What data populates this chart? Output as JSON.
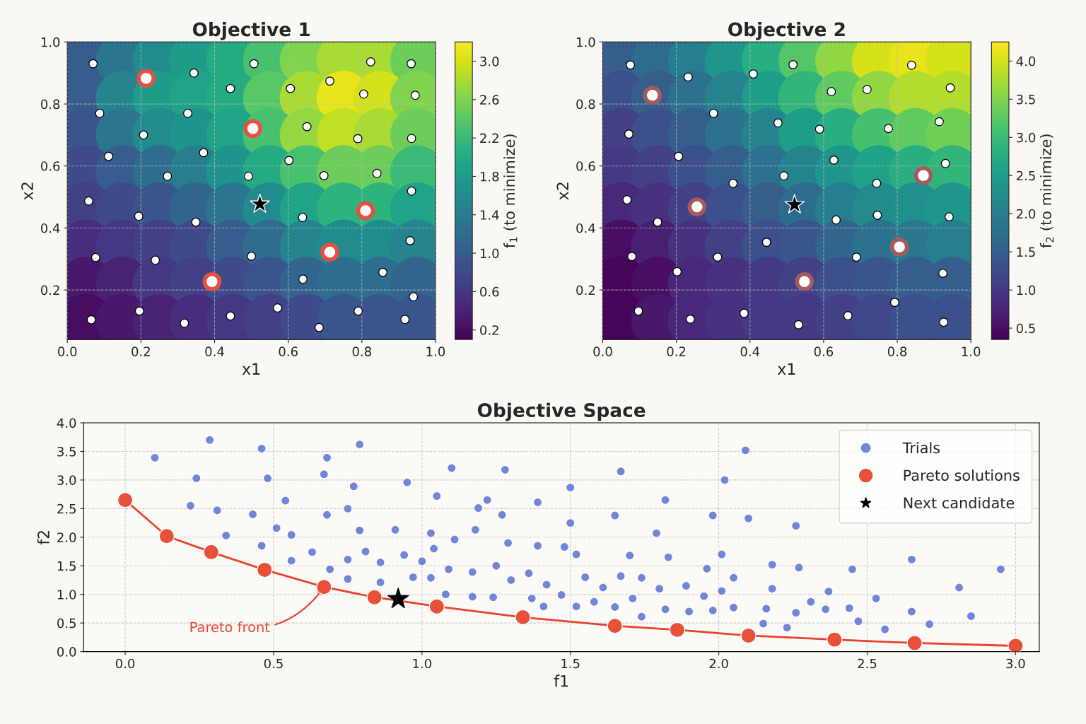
{
  "chart_data": [
    {
      "type": "scatter",
      "title": "Objective 1",
      "xlabel": "x1",
      "ylabel": "x2",
      "clabel": "f$_{1}$ (to minimize)",
      "clim": [
        0.1,
        3.2
      ],
      "cticks": [
        {
          "value": 0.2,
          "label": "0.2"
        },
        {
          "value": 0.6,
          "label": "0.6"
        },
        {
          "value": 1.0,
          "label": "1.0"
        },
        {
          "value": 1.4,
          "label": "1.4"
        },
        {
          "value": 1.8,
          "label": "1.8"
        },
        {
          "value": 2.2,
          "label": "2.2"
        },
        {
          "value": 2.6,
          "label": "2.6"
        },
        {
          "value": 3.0,
          "label": "3.0"
        }
      ],
      "xlim": [
        0,
        1
      ],
      "ylim": [
        0.04,
        1.0
      ],
      "xticks": [
        {
          "value": 0,
          "label": "0.0"
        },
        {
          "value": 0.2,
          "label": "0.2"
        },
        {
          "value": 0.4,
          "label": "0.4"
        },
        {
          "value": 0.6,
          "label": "0.6"
        },
        {
          "value": 0.8,
          "label": "0.8"
        },
        {
          "value": 1,
          "label": "1.0"
        }
      ],
      "yticks": [
        {
          "value": 0.2,
          "label": "0.2"
        },
        {
          "value": 0.4,
          "label": "0.4"
        },
        {
          "value": 0.6,
          "label": "0.6"
        },
        {
          "value": 0.8,
          "label": "0.8"
        },
        {
          "value": 1,
          "label": "1.0"
        }
      ],
      "grid": true,
      "series": [
        {
          "type": "scatter",
          "marker": "circle",
          "x": [
            0.05,
            0.15,
            0.25,
            0.35,
            0.45,
            0.55,
            0.65,
            0.75,
            0.85,
            0.95,
            0.05,
            0.15,
            0.25,
            0.35,
            0.45,
            0.55,
            0.65,
            0.75,
            0.85,
            0.95,
            0.05,
            0.15,
            0.25,
            0.35,
            0.45,
            0.55,
            0.65,
            0.75,
            0.85,
            0.95,
            0.05,
            0.15,
            0.25,
            0.35,
            0.45,
            0.55,
            0.65,
            0.75,
            0.85,
            0.95,
            0.05,
            0.15,
            0.25,
            0.35,
            0.45,
            0.55,
            0.65,
            0.75,
            0.85,
            0.95,
            0.05,
            0.15,
            0.25,
            0.35,
            0.45,
            0.55,
            0.65,
            0.75,
            0.85,
            0.95,
            0.05,
            0.15,
            0.25,
            0.35,
            0.45,
            0.55,
            0.65,
            0.75,
            0.85,
            0.95,
            0.05,
            0.15,
            0.25,
            0.35,
            0.45,
            0.55,
            0.65,
            0.75,
            0.85,
            0.95
          ],
          "values": [
            0.94,
            0.94,
            0.94,
            0.94,
            0.94,
            0.94,
            0.94,
            0.94,
            0.94,
            0.94,
            0.82,
            0.82,
            0.82,
            0.82,
            0.82,
            0.82,
            0.82,
            0.82,
            0.82,
            0.82,
            0.7,
            0.7,
            0.7,
            0.7,
            0.7,
            0.7,
            0.7,
            0.7,
            0.7,
            0.7,
            0.58,
            0.58,
            0.58,
            0.58,
            0.58,
            0.58,
            0.58,
            0.58,
            0.58,
            0.58,
            0.46,
            0.46,
            0.46,
            0.46,
            0.46,
            0.46,
            0.46,
            0.46,
            0.46,
            0.46,
            0.34,
            0.34,
            0.34,
            0.34,
            0.34,
            0.34,
            0.34,
            0.34,
            0.34,
            0.34,
            0.22,
            0.22,
            0.22,
            0.22,
            0.22,
            0.22,
            0.22,
            0.22,
            0.22,
            0.22,
            0.1,
            0.1,
            0.1,
            0.1,
            0.1,
            0.1,
            0.1,
            0.1,
            0.1,
            0.1
          ],
          "colors": [
            "#365d8d",
            "#2b758e",
            "#228c8d",
            "#1e9c89",
            "#25ab82",
            "#48c16e",
            "#7fd34e",
            "#a8db34",
            "#a8db34",
            "#6ccd5a",
            "#365d8d",
            "#25848e",
            "#1e9c89",
            "#20a386",
            "#25ab82",
            "#58c765",
            "#a8db34",
            "#eae51a",
            "#d5e21a",
            "#7fd34e",
            "#3a548c",
            "#2b758e",
            "#228c8d",
            "#1f948c",
            "#20a386",
            "#48c16e",
            "#93d741",
            "#c0df25",
            "#a8db34",
            "#6ccd5a",
            "#3e4a89",
            "#365d8d",
            "#2e6d8e",
            "#277d8e",
            "#1f948c",
            "#25ab82",
            "#48c16e",
            "#6ccd5a",
            "#6ccd5a",
            "#3bba75",
            "#424186",
            "#3e4a89",
            "#3a548c",
            "#32658e",
            "#2b758e",
            "#228c8d",
            "#20a386",
            "#2eb37c",
            "#2eb37c",
            "#20a386",
            "#472e7c",
            "#453882",
            "#424186",
            "#3e4a89",
            "#365d8d",
            "#2e6d8e",
            "#25848e",
            "#228c8d",
            "#228c8d",
            "#25848e",
            "#48186a",
            "#482373",
            "#453882",
            "#424186",
            "#3e4a89",
            "#3a548c",
            "#32658e",
            "#2e6d8e",
            "#2e6d8e",
            "#32658e",
            "#470c5f",
            "#48186a",
            "#482373",
            "#472e7c",
            "#453882",
            "#424186",
            "#3e4a89",
            "#3a548c",
            "#3a548c",
            "#3a548c"
          ],
          "cvalues": [
            1.0,
            1.3,
            1.6,
            1.8,
            2.0,
            2.3,
            2.6,
            2.8,
            2.8,
            2.5,
            1.0,
            1.5,
            1.8,
            1.9,
            2.0,
            2.4,
            2.8,
            3.1,
            3.0,
            2.6,
            0.9,
            1.3,
            1.6,
            1.7,
            1.9,
            2.3,
            2.7,
            2.9,
            2.8,
            2.5,
            0.8,
            1.0,
            1.2,
            1.4,
            1.7,
            2.0,
            2.3,
            2.5,
            2.5,
            2.2,
            0.7,
            0.8,
            0.9,
            1.1,
            1.3,
            1.6,
            1.9,
            2.1,
            2.1,
            1.9,
            0.5,
            0.6,
            0.7,
            0.8,
            1.0,
            1.2,
            1.5,
            1.6,
            1.6,
            1.5,
            0.3,
            0.4,
            0.6,
            0.7,
            0.8,
            0.9,
            1.1,
            1.2,
            1.2,
            1.1,
            0.2,
            0.3,
            0.4,
            0.5,
            0.6,
            0.7,
            0.8,
            0.9,
            0.9,
            0.9
          ]
        },
        {
          "type": "scatter",
          "color": "#ffffff",
          "marker": "circle",
          "x": [
            0.07,
            0.344,
            0.507,
            0.443,
            0.606,
            0.713,
            0.824,
            0.934,
            0.805,
            0.945,
            0.088,
            0.327,
            0.207,
            0.651,
            0.789,
            0.935,
            0.112,
            0.37,
            0.602,
            0.272,
            0.492,
            0.697,
            0.841,
            0.935,
            0.058,
            0.194,
            0.349,
            0.639,
            0.931,
            0.077,
            0.239,
            0.5,
            0.857,
            0.64,
            0.94,
            0.065,
            0.196,
            0.318,
            0.443,
            0.571,
            0.79,
            0.684,
            0.917
          ],
          "values": [
            0.93,
            0.9,
            0.93,
            0.85,
            0.85,
            0.874,
            0.936,
            0.93,
            0.832,
            0.828,
            0.77,
            0.77,
            0.7,
            0.727,
            0.688,
            0.689,
            0.631,
            0.643,
            0.618,
            0.567,
            0.567,
            0.569,
            0.576,
            0.519,
            0.487,
            0.438,
            0.419,
            0.434,
            0.359,
            0.305,
            0.296,
            0.309,
            0.257,
            0.235,
            0.178,
            0.104,
            0.132,
            0.093,
            0.116,
            0.142,
            0.132,
            0.079,
            0.105
          ]
        },
        {
          "type": "scatter",
          "color": "#e4523f",
          "marker": "circle",
          "x": [
            0.214,
            0.504,
            0.81,
            0.713,
            0.393
          ],
          "values": [
            0.883,
            0.721,
            0.456,
            0.322,
            0.227
          ]
        },
        {
          "type": "scatter",
          "color": "#000000",
          "marker": "star",
          "x": [
            0.523
          ],
          "values": [
            0.477
          ]
        }
      ]
    },
    {
      "type": "scatter",
      "title": "Objective 2",
      "xlabel": "x1",
      "ylabel": "x2",
      "clabel": "f$_{2}$ (to minimize)",
      "clim": [
        0.35,
        4.25
      ],
      "cticks": [
        {
          "value": 0.5,
          "label": "0.5"
        },
        {
          "value": 1.0,
          "label": "1.0"
        },
        {
          "value": 1.5,
          "label": "1.5"
        },
        {
          "value": 2.0,
          "label": "2.0"
        },
        {
          "value": 2.5,
          "label": "2.5"
        },
        {
          "value": 3.0,
          "label": "3.0"
        },
        {
          "value": 3.5,
          "label": "3.5"
        },
        {
          "value": 4.0,
          "label": "4.0"
        }
      ],
      "xlim": [
        0,
        1
      ],
      "ylim": [
        0.04,
        1.0
      ],
      "xticks": [
        {
          "value": 0,
          "label": "0.0"
        },
        {
          "value": 0.2,
          "label": "0.2"
        },
        {
          "value": 0.4,
          "label": "0.4"
        },
        {
          "value": 0.6,
          "label": "0.6"
        },
        {
          "value": 0.8,
          "label": "0.8"
        },
        {
          "value": 1,
          "label": "1.0"
        }
      ],
      "yticks": [
        {
          "value": 0.2,
          "label": "0.2"
        },
        {
          "value": 0.4,
          "label": "0.4"
        },
        {
          "value": 0.6,
          "label": "0.6"
        },
        {
          "value": 0.8,
          "label": "0.8"
        },
        {
          "value": 1,
          "label": "1.0"
        }
      ],
      "grid": true,
      "series": [
        {
          "type": "scatter",
          "marker": "circle",
          "x": [
            0.05,
            0.15,
            0.25,
            0.35,
            0.45,
            0.55,
            0.65,
            0.75,
            0.85,
            0.95,
            0.05,
            0.15,
            0.25,
            0.35,
            0.45,
            0.55,
            0.65,
            0.75,
            0.85,
            0.95,
            0.05,
            0.15,
            0.25,
            0.35,
            0.45,
            0.55,
            0.65,
            0.75,
            0.85,
            0.95,
            0.05,
            0.15,
            0.25,
            0.35,
            0.45,
            0.55,
            0.65,
            0.75,
            0.85,
            0.95,
            0.05,
            0.15,
            0.25,
            0.35,
            0.45,
            0.55,
            0.65,
            0.75,
            0.85,
            0.95,
            0.05,
            0.15,
            0.25,
            0.35,
            0.45,
            0.55,
            0.65,
            0.75,
            0.85,
            0.95,
            0.05,
            0.15,
            0.25,
            0.35,
            0.45,
            0.55,
            0.65,
            0.75,
            0.85,
            0.95,
            0.05,
            0.15,
            0.25,
            0.35,
            0.45,
            0.55,
            0.65,
            0.75,
            0.85,
            0.95
          ],
          "values": [
            0.94,
            0.94,
            0.94,
            0.94,
            0.94,
            0.94,
            0.94,
            0.94,
            0.94,
            0.94,
            0.82,
            0.82,
            0.82,
            0.82,
            0.82,
            0.82,
            0.82,
            0.82,
            0.82,
            0.82,
            0.7,
            0.7,
            0.7,
            0.7,
            0.7,
            0.7,
            0.7,
            0.7,
            0.7,
            0.7,
            0.58,
            0.58,
            0.58,
            0.58,
            0.58,
            0.58,
            0.58,
            0.58,
            0.58,
            0.58,
            0.46,
            0.46,
            0.46,
            0.46,
            0.46,
            0.46,
            0.46,
            0.46,
            0.46,
            0.46,
            0.34,
            0.34,
            0.34,
            0.34,
            0.34,
            0.34,
            0.34,
            0.34,
            0.34,
            0.34,
            0.22,
            0.22,
            0.22,
            0.22,
            0.22,
            0.22,
            0.22,
            0.22,
            0.22,
            0.22,
            0.1,
            0.1,
            0.1,
            0.1,
            0.1,
            0.1,
            0.1,
            0.1,
            0.1,
            0.1
          ],
          "colors": [
            "#355e8d",
            "#2f6b8e",
            "#277e8e",
            "#1f968b",
            "#28ae80",
            "#54c568",
            "#90d743",
            "#d5e21a",
            "#e7e419",
            "#d5e21a",
            "#3c508b",
            "#355e8d",
            "#2c718e",
            "#25838e",
            "#1e9d89",
            "#31b57b",
            "#60ca60",
            "#90d743",
            "#b2dd2d",
            "#b2dd2d",
            "#424186",
            "#3c508b",
            "#355e8d",
            "#2c718e",
            "#25838e",
            "#1e9d89",
            "#28ae80",
            "#46c06f",
            "#60ca60",
            "#70cf57",
            "#443983",
            "#424186",
            "#3c508b",
            "#355e8d",
            "#2c718e",
            "#25838e",
            "#1f968b",
            "#1fa287",
            "#28ae80",
            "#31b57b",
            "#482979",
            "#46327e",
            "#424186",
            "#3c508b",
            "#355e8d",
            "#2f6b8e",
            "#277e8e",
            "#238a8d",
            "#21908d",
            "#1f968b",
            "#470e61",
            "#482071",
            "#46327e",
            "#424186",
            "#3c508b",
            "#39568c",
            "#32658e",
            "#2c718e",
            "#2a778e",
            "#277e8e",
            "#450559",
            "#470e61",
            "#482979",
            "#46327e",
            "#443983",
            "#424186",
            "#3c508b",
            "#39568c",
            "#355e8d",
            "#355e8d",
            "#450559",
            "#48186a",
            "#482979",
            "#46327e",
            "#443983",
            "#443983",
            "#424186",
            "#3f4889",
            "#3c508b",
            "#3c508b"
          ],
          "cvalues": [
            1.5,
            1.7,
            2.0,
            2.4,
            2.8,
            3.2,
            3.6,
            4.0,
            4.1,
            4.0,
            1.3,
            1.5,
            1.8,
            2.1,
            2.5,
            2.9,
            3.3,
            3.6,
            3.8,
            3.8,
            1.1,
            1.3,
            1.5,
            1.8,
            2.1,
            2.5,
            2.8,
            3.1,
            3.3,
            3.4,
            1.0,
            1.1,
            1.3,
            1.5,
            1.8,
            2.1,
            2.4,
            2.6,
            2.8,
            2.9,
            0.8,
            0.9,
            1.1,
            1.3,
            1.5,
            1.7,
            2.0,
            2.2,
            2.3,
            2.4,
            0.5,
            0.7,
            0.9,
            1.1,
            1.3,
            1.4,
            1.6,
            1.8,
            1.9,
            2.0,
            0.4,
            0.5,
            0.8,
            0.9,
            1.0,
            1.1,
            1.3,
            1.4,
            1.5,
            1.5,
            0.4,
            0.6,
            0.8,
            0.9,
            1.0,
            1.0,
            1.1,
            1.2,
            1.3,
            1.3
          ]
        },
        {
          "type": "scatter",
          "color": "#ffffff",
          "marker": "circle",
          "x": [
            0.075,
            0.232,
            0.409,
            0.517,
            0.839,
            0.621,
            0.718,
            0.944,
            0.301,
            0.476,
            0.589,
            0.776,
            0.914,
            0.071,
            0.206,
            0.628,
            0.931,
            0.492,
            0.354,
            0.744,
            0.066,
            0.149,
            0.634,
            0.746,
            0.941,
            0.445,
            0.079,
            0.312,
            0.689,
            0.202,
            0.924,
            0.097,
            0.238,
            0.384,
            0.532,
            0.666,
            0.793,
            0.926
          ],
          "values": [
            0.926,
            0.887,
            0.897,
            0.927,
            0.925,
            0.84,
            0.847,
            0.852,
            0.77,
            0.739,
            0.719,
            0.721,
            0.743,
            0.703,
            0.631,
            0.619,
            0.608,
            0.568,
            0.544,
            0.544,
            0.491,
            0.419,
            0.426,
            0.441,
            0.436,
            0.354,
            0.308,
            0.306,
            0.306,
            0.259,
            0.254,
            0.132,
            0.106,
            0.125,
            0.088,
            0.117,
            0.16,
            0.096
          ]
        },
        {
          "type": "scatter",
          "color": "#a65a5c",
          "marker": "circle",
          "x": [
            0.135,
            0.256,
            0.871,
            0.806,
            0.548
          ],
          "values": [
            0.828,
            0.468,
            0.569,
            0.339,
            0.227
          ]
        },
        {
          "type": "scatter",
          "color": "#000000",
          "marker": "star",
          "x": [
            0.521
          ],
          "values": [
            0.475
          ]
        }
      ]
    },
    {
      "type": "scatter",
      "title": "Objective Space",
      "xlabel": "f1",
      "ylabel": "f2",
      "xlim": [
        -0.14,
        3.08
      ],
      "ylim": [
        0,
        4
      ],
      "xticks": [
        {
          "value": 0,
          "label": "0.0"
        },
        {
          "value": 0.5,
          "label": "0.5"
        },
        {
          "value": 1,
          "label": "1.0"
        },
        {
          "value": 1.5,
          "label": "1.5"
        },
        {
          "value": 2,
          "label": "2.0"
        },
        {
          "value": 2.5,
          "label": "2.5"
        },
        {
          "value": 3,
          "label": "3.0"
        }
      ],
      "yticks": [
        {
          "value": 0,
          "label": "0.0"
        },
        {
          "value": 0.5,
          "label": "0.5"
        },
        {
          "value": 1,
          "label": "1.0"
        },
        {
          "value": 1.5,
          "label": "1.5"
        },
        {
          "value": 2,
          "label": "2.0"
        },
        {
          "value": 2.5,
          "label": "2.5"
        },
        {
          "value": 3,
          "label": "3.0"
        },
        {
          "value": 3.5,
          "label": "3.5"
        },
        {
          "value": 4,
          "label": "4.0"
        }
      ],
      "grid": true,
      "legend": "top right",
      "annotations": [
        {
          "text": "Pareto front",
          "x": 0.67,
          "y": 1.13
        }
      ],
      "series": [
        {
          "type": "line",
          "color": "#e8432f",
          "marker": "none",
          "x": [
            0.0,
            0.14,
            0.29,
            0.47,
            0.67,
            0.84,
            1.05,
            1.34,
            1.65,
            1.86,
            2.1,
            2.39,
            2.66,
            3.0
          ],
          "values": [
            2.65,
            2.02,
            1.74,
            1.43,
            1.13,
            0.95,
            0.79,
            0.6,
            0.45,
            0.38,
            0.28,
            0.21,
            0.15,
            0.1
          ]
        },
        {
          "type": "scatter",
          "name": "Trials",
          "color": "#6f86d9",
          "marker": "circle",
          "x": [
            0.1,
            0.285,
            0.24,
            0.22,
            0.31,
            0.34,
            0.46,
            0.48,
            0.43,
            0.46,
            0.51,
            0.54,
            0.56,
            0.56,
            0.63,
            0.67,
            0.68,
            0.68,
            0.69,
            0.75,
            0.75,
            0.75,
            0.77,
            0.79,
            0.79,
            0.81,
            0.86,
            0.86,
            0.91,
            0.94,
            0.95,
            0.97,
            1.0,
            1.03,
            1.03,
            1.04,
            1.05,
            1.08,
            1.09,
            1.1,
            1.11,
            1.17,
            1.17,
            1.18,
            1.19,
            1.22,
            1.24,
            1.25,
            1.27,
            1.28,
            1.29,
            1.3,
            1.36,
            1.37,
            1.39,
            1.39,
            1.42,
            1.41,
            1.5,
            1.5,
            1.48,
            1.52,
            1.47,
            1.55,
            1.52,
            1.58,
            1.61,
            1.67,
            1.65,
            1.7,
            1.67,
            1.65,
            1.71,
            1.74,
            1.74,
            1.79,
            1.82,
            1.83,
            1.8,
            1.82,
            1.89,
            1.9,
            1.98,
            1.96,
            1.95,
            1.98,
            2.02,
            2.01,
            2.01,
            2.05,
            2.05,
            2.09,
            2.1,
            2.18,
            2.18,
            2.16,
            2.15,
            2.26,
            2.27,
            2.26,
            2.23,
            2.31,
            2.36,
            2.37,
            2.44,
            2.45,
            2.47,
            2.53,
            2.56,
            2.65,
            2.65,
            2.71,
            2.81,
            2.85,
            2.95
          ],
          "values": [
            3.39,
            3.7,
            3.03,
            2.55,
            2.47,
            2.03,
            3.55,
            3.03,
            2.4,
            1.85,
            2.16,
            2.64,
            2.04,
            1.59,
            1.74,
            3.1,
            3.39,
            2.39,
            1.44,
            2.5,
            1.61,
            1.27,
            2.89,
            3.62,
            2.12,
            1.75,
            1.56,
            1.21,
            2.13,
            1.69,
            2.96,
            1.3,
            1.58,
            2.07,
            1.29,
            1.8,
            2.72,
            1.0,
            1.44,
            3.21,
            1.96,
            0.96,
            1.39,
            2.13,
            2.51,
            2.65,
            0.95,
            1.5,
            2.39,
            3.18,
            1.9,
            1.25,
            1.37,
            0.93,
            2.61,
            1.85,
            1.17,
            0.79,
            2.87,
            2.25,
            1.83,
            1.7,
            0.99,
            1.3,
            0.79,
            0.87,
            1.12,
            3.15,
            2.38,
            1.68,
            1.32,
            0.78,
            0.93,
            1.29,
            0.61,
            2.07,
            2.65,
            1.65,
            1.1,
            0.74,
            1.15,
            0.7,
            2.38,
            1.45,
            0.97,
            0.72,
            3.0,
            1.7,
            1.06,
            1.29,
            0.77,
            3.52,
            2.33,
            1.52,
            1.1,
            0.75,
            0.49,
            2.2,
            1.47,
            0.68,
            0.42,
            0.87,
            0.74,
            1.05,
            0.76,
            1.44,
            0.53,
            0.93,
            0.39,
            1.61,
            0.7,
            0.48,
            1.12,
            0.62,
            1.44
          ]
        },
        {
          "type": "scatter",
          "name": "Pareto solutions",
          "color": "#e8503a",
          "marker": "circle",
          "x": [
            0.0,
            0.14,
            0.29,
            0.47,
            0.67,
            0.84,
            1.05,
            1.34,
            1.65,
            1.86,
            2.1,
            2.39,
            2.66,
            3.0
          ],
          "values": [
            2.65,
            2.02,
            1.74,
            1.43,
            1.13,
            0.95,
            0.79,
            0.6,
            0.45,
            0.38,
            0.28,
            0.21,
            0.15,
            0.1
          ]
        },
        {
          "type": "scatter",
          "name": "Next candidate",
          "color": "#000000",
          "marker": "star",
          "x": [
            0.92
          ],
          "values": [
            0.92
          ]
        }
      ]
    }
  ]
}
